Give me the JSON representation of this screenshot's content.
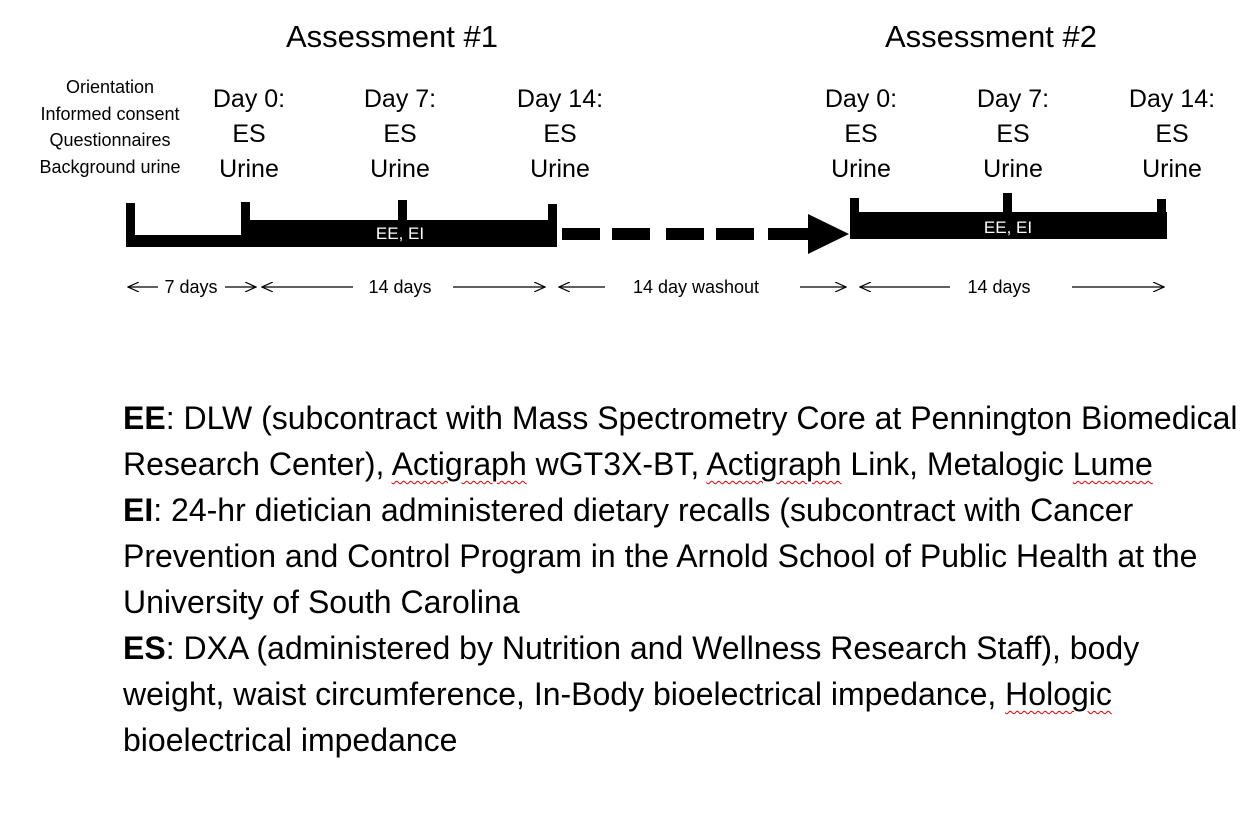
{
  "assessments": [
    {
      "title": "Assessment #1"
    },
    {
      "title": "Assessment #2"
    }
  ],
  "orientation_lines": [
    "Orientation",
    "Informed consent",
    "Questionnaires",
    "Background urine"
  ],
  "days": [
    {
      "day": "Day 0:",
      "line2": "ES",
      "line3": "Urine"
    },
    {
      "day": "Day 7:",
      "line2": "ES",
      "line3": "Urine"
    },
    {
      "day": "Day 14:",
      "line2": "ES",
      "line3": "Urine"
    },
    {
      "day": "Day 0:",
      "line2": "ES",
      "line3": "Urine"
    },
    {
      "day": "Day 7:",
      "line2": "ES",
      "line3": "Urine"
    },
    {
      "day": "Day 14:",
      "line2": "ES",
      "line3": "Urine"
    }
  ],
  "bar_labels": [
    "EE,  EI",
    "EE,  EI"
  ],
  "durations": [
    "7 days",
    "14 days",
    "14 day washout",
    "14 days"
  ],
  "legend": {
    "ee_term": "EE",
    "ee_text_1": ": DLW (subcontract with Mass Spectrometry Core at Pennington Biomedical Research Center), ",
    "ee_actigraph1": "Actigraph",
    "ee_text_2": " wGT3X-BT, ",
    "ee_actigraph2": "Actigraph",
    "ee_text_3": " Link, Metalogic ",
    "ee_lume": "Lume",
    "ei_term": "EI",
    "ei_text": ": 24-hr dietician administered dietary recalls (subcontract with Cancer Prevention and Control Program in the Arnold School of Public Health at the University of South Carolina",
    "es_term": "ES",
    "es_text_1": ": DXA (administered by Nutrition and Wellness Research Staff), body weight, waist circumference, In-Body bioelectrical impedance, ",
    "es_hologic": "Hologic",
    "es_text_2": " bioelectrical impedance"
  }
}
